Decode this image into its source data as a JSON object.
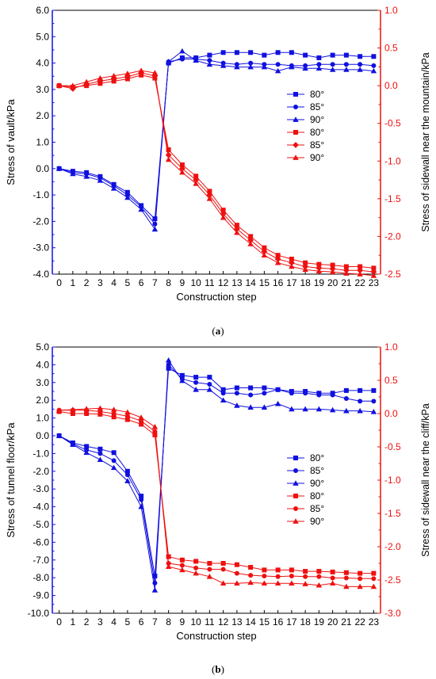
{
  "chart_data": [
    {
      "type": "line",
      "panel_label": "a",
      "xlabel": "Construction step",
      "x": [
        0,
        1,
        2,
        3,
        4,
        5,
        6,
        7,
        8,
        9,
        10,
        11,
        12,
        13,
        14,
        15,
        16,
        17,
        18,
        19,
        20,
        21,
        22,
        23
      ],
      "x_tick_labels": [
        "0",
        "1",
        "2",
        "3",
        "4",
        "5",
        "6",
        "7",
        "8",
        "9",
        "10",
        "11",
        "12",
        "13",
        "14",
        "15",
        "16",
        "17",
        "18",
        "19",
        "20",
        "21",
        "22",
        "23"
      ],
      "xlim": [
        -0.5,
        23.5
      ],
      "y_left": {
        "label": "Stress of vault/kPa",
        "lim": [
          -4.0,
          6.0
        ],
        "ticks": [
          -4.0,
          -3.0,
          -2.0,
          -1.0,
          0.0,
          1.0,
          2.0,
          3.0,
          4.0,
          5.0,
          6.0
        ],
        "tick_labels": [
          "-4.0",
          "-3.0",
          "-2.0",
          "-1.0",
          "0.0",
          "1.0",
          "2.0",
          "3.0",
          "4.0",
          "5.0",
          "6.0"
        ],
        "color": "#1010e0"
      },
      "y_right": {
        "label": "Stress of sidewall near the mountain/kPa",
        "lim": [
          -2.5,
          1.0
        ],
        "ticks": [
          -2.5,
          -2.0,
          -1.5,
          -1.0,
          -0.5,
          0.0,
          0.5,
          1.0
        ],
        "tick_labels": [
          "-2.5",
          "-2.0",
          "-1.5",
          "-1.0",
          "-0.5",
          "0.0",
          "0.5",
          "1.0"
        ],
        "color": "#ee1010"
      },
      "legend": {
        "position": "center-right",
        "entries": [
          {
            "name": "80°",
            "color": "#1010e0",
            "marker": "square"
          },
          {
            "name": "85°",
            "color": "#1010e0",
            "marker": "circle"
          },
          {
            "name": "90°",
            "color": "#1010e0",
            "marker": "triangle"
          },
          {
            "name": "80°",
            "color": "#ee1010",
            "marker": "square"
          },
          {
            "name": "85°",
            "color": "#ee1010",
            "marker": "diamond"
          },
          {
            "name": "90°",
            "color": "#ee1010",
            "marker": "triangle"
          }
        ]
      },
      "series": [
        {
          "name": "80°",
          "axis": "left",
          "color": "#1010e0",
          "marker": "square",
          "values": [
            0.0,
            -0.1,
            -0.15,
            -0.3,
            -0.6,
            -0.9,
            -1.4,
            -1.9,
            4.0,
            4.2,
            4.2,
            4.3,
            4.4,
            4.4,
            4.4,
            4.3,
            4.4,
            4.4,
            4.3,
            4.2,
            4.3,
            4.3,
            4.25,
            4.25
          ]
        },
        {
          "name": "85°",
          "axis": "left",
          "color": "#1010e0",
          "marker": "circle",
          "values": [
            0.0,
            -0.15,
            -0.2,
            -0.35,
            -0.65,
            -1.0,
            -1.45,
            -2.1,
            4.05,
            4.15,
            4.15,
            4.1,
            4.0,
            3.95,
            4.0,
            3.95,
            3.95,
            3.9,
            3.9,
            3.95,
            3.95,
            3.95,
            3.95,
            3.9
          ]
        },
        {
          "name": "90°",
          "axis": "left",
          "color": "#1010e0",
          "marker": "triangle",
          "values": [
            0.0,
            -0.2,
            -0.3,
            -0.45,
            -0.75,
            -1.1,
            -1.55,
            -2.3,
            4.05,
            4.45,
            4.1,
            3.95,
            3.9,
            3.85,
            3.85,
            3.85,
            3.7,
            3.85,
            3.8,
            3.8,
            3.75,
            3.75,
            3.75,
            3.7
          ]
        },
        {
          "name": "80°",
          "axis": "right",
          "color": "#ee1010",
          "marker": "square",
          "values": [
            0.0,
            -0.02,
            0.0,
            0.03,
            0.06,
            0.09,
            0.14,
            0.1,
            -0.85,
            -1.05,
            -1.2,
            -1.4,
            -1.65,
            -1.85,
            -2.0,
            -2.15,
            -2.25,
            -2.3,
            -2.35,
            -2.37,
            -2.38,
            -2.4,
            -2.4,
            -2.42
          ]
        },
        {
          "name": "85°",
          "axis": "right",
          "color": "#ee1010",
          "marker": "diamond",
          "values": [
            0.0,
            -0.04,
            0.02,
            0.06,
            0.09,
            0.12,
            0.17,
            0.13,
            -0.92,
            -1.1,
            -1.25,
            -1.45,
            -1.7,
            -1.9,
            -2.05,
            -2.2,
            -2.3,
            -2.35,
            -2.4,
            -2.42,
            -2.43,
            -2.45,
            -2.45,
            -2.47
          ]
        },
        {
          "name": "90°",
          "axis": "right",
          "color": "#ee1010",
          "marker": "triangle",
          "values": [
            0.0,
            0.0,
            0.05,
            0.1,
            0.13,
            0.16,
            0.2,
            0.17,
            -0.98,
            -1.15,
            -1.3,
            -1.5,
            -1.75,
            -1.95,
            -2.1,
            -2.25,
            -2.35,
            -2.4,
            -2.44,
            -2.46,
            -2.47,
            -2.49,
            -2.5,
            -2.52
          ]
        }
      ]
    },
    {
      "type": "line",
      "panel_label": "b",
      "xlabel": "Construction step",
      "x": [
        0,
        1,
        2,
        3,
        4,
        5,
        6,
        7,
        8,
        9,
        10,
        11,
        12,
        13,
        14,
        15,
        16,
        17,
        18,
        19,
        20,
        21,
        22,
        23
      ],
      "x_tick_labels": [
        "0",
        "1",
        "2",
        "3",
        "4",
        "5",
        "6",
        "7",
        "8",
        "9",
        "10",
        "11",
        "12",
        "13",
        "14",
        "15",
        "16",
        "17",
        "18",
        "19",
        "20",
        "21",
        "22",
        "23"
      ],
      "xlim": [
        -0.5,
        23.5
      ],
      "y_left": {
        "label": "Stress of tunnel floor/kPa",
        "lim": [
          -10.0,
          5.0
        ],
        "ticks": [
          -10.0,
          -9.0,
          -8.0,
          -7.0,
          -6.0,
          -5.0,
          -4.0,
          -3.0,
          -2.0,
          -1.0,
          0.0,
          1.0,
          2.0,
          3.0,
          4.0,
          5.0
        ],
        "tick_labels": [
          "-10.0",
          "-9.0",
          "-8.0",
          "-7.0",
          "-6.0",
          "-5.0",
          "-4.0",
          "-3.0",
          "-2.0",
          "-1.0",
          "0.0",
          "1.0",
          "2.0",
          "3.0",
          "4.0",
          "5.0"
        ],
        "color": "#1010e0"
      },
      "y_right": {
        "label": "Stress of sidewall near the cliff/kPa",
        "lim": [
          -3.0,
          1.0
        ],
        "ticks": [
          -3.0,
          -2.5,
          -2.0,
          -1.5,
          -1.0,
          -0.5,
          0.0,
          0.5,
          1.0
        ],
        "tick_labels": [
          "-3.0",
          "-2.5",
          "-2.0",
          "-1.5",
          "-1.0",
          "-0.5",
          "0.0",
          "0.5",
          "1.0"
        ],
        "color": "#ee1010"
      },
      "legend": {
        "position": "center-right",
        "entries": [
          {
            "name": "80°",
            "color": "#1010e0",
            "marker": "square"
          },
          {
            "name": "85°",
            "color": "#1010e0",
            "marker": "circle"
          },
          {
            "name": "90°",
            "color": "#1010e0",
            "marker": "triangle"
          },
          {
            "name": "80°",
            "color": "#ee1010",
            "marker": "square"
          },
          {
            "name": "85°",
            "color": "#ee1010",
            "marker": "circle"
          },
          {
            "name": "90°",
            "color": "#ee1010",
            "marker": "triangle"
          }
        ]
      },
      "series": [
        {
          "name": "80°",
          "axis": "left",
          "color": "#1010e0",
          "marker": "square",
          "values": [
            0.0,
            -0.4,
            -0.6,
            -0.75,
            -0.95,
            -2.0,
            -3.4,
            -7.9,
            3.8,
            3.4,
            3.3,
            3.3,
            2.6,
            2.7,
            2.7,
            2.7,
            2.6,
            2.5,
            2.5,
            2.4,
            2.4,
            2.55,
            2.55,
            2.55
          ]
        },
        {
          "name": "85°",
          "axis": "left",
          "color": "#1010e0",
          "marker": "circle",
          "values": [
            0.0,
            -0.45,
            -0.8,
            -1.0,
            -1.4,
            -2.2,
            -3.6,
            -8.3,
            4.0,
            3.2,
            3.0,
            2.9,
            2.4,
            2.4,
            2.3,
            2.4,
            2.6,
            2.4,
            2.4,
            2.3,
            2.3,
            2.1,
            1.95,
            1.95
          ]
        },
        {
          "name": "90°",
          "axis": "left",
          "color": "#1010e0",
          "marker": "triangle",
          "values": [
            0.0,
            -0.5,
            -0.95,
            -1.35,
            -1.8,
            -2.55,
            -4.0,
            -8.7,
            4.25,
            3.1,
            2.6,
            2.6,
            2.0,
            1.7,
            1.6,
            1.6,
            1.8,
            1.5,
            1.5,
            1.5,
            1.45,
            1.4,
            1.4,
            1.35
          ]
        },
        {
          "name": "80°",
          "axis": "right",
          "color": "#ee1010",
          "marker": "square",
          "values": [
            0.03,
            0.0,
            0.0,
            -0.01,
            -0.05,
            -0.09,
            -0.16,
            -0.32,
            -2.15,
            -2.2,
            -2.22,
            -2.25,
            -2.25,
            -2.27,
            -2.31,
            -2.35,
            -2.35,
            -2.35,
            -2.37,
            -2.37,
            -2.38,
            -2.39,
            -2.4,
            -2.4
          ]
        },
        {
          "name": "85°",
          "axis": "right",
          "color": "#ee1010",
          "marker": "circle",
          "values": [
            0.05,
            0.05,
            0.05,
            0.03,
            0.0,
            -0.04,
            -0.11,
            -0.27,
            -2.25,
            -2.28,
            -2.32,
            -2.34,
            -2.34,
            -2.4,
            -2.43,
            -2.44,
            -2.45,
            -2.44,
            -2.45,
            -2.45,
            -2.47,
            -2.47,
            -2.48,
            -2.48
          ]
        },
        {
          "name": "90°",
          "axis": "right",
          "color": "#ee1010",
          "marker": "triangle",
          "values": [
            0.05,
            0.06,
            0.07,
            0.08,
            0.06,
            0.02,
            -0.06,
            -0.2,
            -2.3,
            -2.35,
            -2.4,
            -2.45,
            -2.55,
            -2.55,
            -2.54,
            -2.55,
            -2.55,
            -2.55,
            -2.56,
            -2.58,
            -2.55,
            -2.6,
            -2.6,
            -2.6
          ]
        }
      ]
    }
  ]
}
